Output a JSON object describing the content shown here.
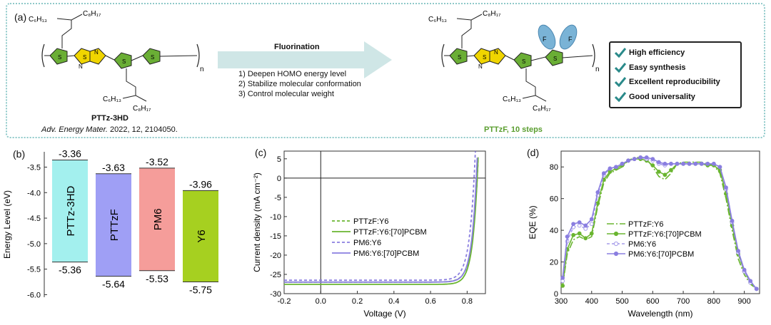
{
  "panel_a": {
    "label": "(a)",
    "left_polymer": {
      "name": "PTTz-3HD",
      "ref_journal": "Adv. Energy Mater.",
      "ref_rest": " 2022, 12, 2104050.",
      "top_chain": [
        "C₆H₁₃",
        "C₈H₁₇"
      ],
      "bottom_chain": [
        "C₆H₁₃",
        "C₈H₁₇"
      ],
      "atoms": [
        "S",
        "S",
        "N",
        "N",
        "S",
        "S",
        "n"
      ]
    },
    "arrow": {
      "title": "Fluorination",
      "steps": [
        "1) Deepen HOMO energy level",
        "2) Stabilize molecular conformation",
        "3) Control molecular weight"
      ]
    },
    "right_polymer": {
      "name": "PTTzF, 10 steps",
      "atoms": [
        "S",
        "S",
        "N",
        "N",
        "S",
        "S",
        "F",
        "F",
        "n"
      ],
      "top_chain": [
        "C₆H₁₃",
        "C₈H₁₇"
      ],
      "bottom_chain": [
        "C₆H₁₃",
        "C₈H₁₇"
      ]
    },
    "properties": [
      "High efficiency",
      "Easy synthesis",
      "Excellent reproducibility",
      "Good universality"
    ],
    "colors": {
      "thiophene": "#5a9e2f",
      "tz": "#e0c000",
      "fluoro": "#7ab3d6",
      "name_green": "#5a9e2f"
    }
  },
  "panel_b": {
    "label": "(b)",
    "ylabel": "Energy Level (eV)",
    "yticks": [
      "-3.5",
      "-4.0",
      "-4.5",
      "-5.0",
      "-5.5",
      "-6.0"
    ],
    "ytick_values": [
      -3.5,
      -4.0,
      -4.5,
      -5.0,
      -5.5,
      -6.0
    ],
    "ylim": [
      -6.05,
      -3.2
    ],
    "bars": [
      {
        "name": "PTTz-3HD",
        "lumo": -3.36,
        "homo": -5.36,
        "lumo_label": "-3.36",
        "homo_label": "-5.36",
        "color": "#a3f0ee"
      },
      {
        "name": "PTTzF",
        "lumo": -3.63,
        "homo": -5.64,
        "lumo_label": "-3.63",
        "homo_label": "-5.64",
        "color": "#9f9ff5"
      },
      {
        "name": "PM6",
        "lumo": -3.52,
        "homo": -5.53,
        "lumo_label": "-3.52",
        "homo_label": "-5.53",
        "color": "#f59d9a"
      },
      {
        "name": "Y6",
        "lumo": -3.96,
        "homo": -5.75,
        "lumo_label": "-3.96",
        "homo_label": "-5.75",
        "color": "#a6d020"
      }
    ]
  },
  "chart_data": [
    {
      "type": "line",
      "title": "(c)",
      "xlabel": "Voltage (V)",
      "ylabel": "Current density (mA cm⁻²)",
      "xlim": [
        -0.2,
        0.9
      ],
      "ylim": [
        -30,
        7
      ],
      "xticks": [
        "-0.2",
        "0.0",
        "0.2",
        "0.4",
        "0.6",
        "0.8"
      ],
      "xtick_values": [
        -0.2,
        0.0,
        0.2,
        0.4,
        0.6,
        0.8
      ],
      "yticks": [
        "5",
        "0",
        "-5",
        "-10",
        "-15",
        "-20",
        "-25",
        "-30"
      ],
      "ytick_values": [
        5,
        0,
        -5,
        -10,
        -15,
        -20,
        -25,
        -30
      ],
      "series": [
        {
          "name": "PTTzF:Y6",
          "color": "#6ab530",
          "dash": "4,3",
          "jsc": -27.0,
          "voc": 0.855,
          "n": 0.03
        },
        {
          "name": "PTTzF:Y6:[70]PCBM",
          "color": "#6ab530",
          "dash": "",
          "jsc": -27.6,
          "voc": 0.855,
          "n": 0.028
        },
        {
          "name": "PM6:Y6",
          "color": "#8a7ee0",
          "dash": "4,3",
          "jsc": -26.5,
          "voc": 0.838,
          "n": 0.03
        },
        {
          "name": "PM6:Y6:[70]PCBM",
          "color": "#8a7ee0",
          "dash": "",
          "jsc": -27.0,
          "voc": 0.85,
          "n": 0.028
        }
      ]
    },
    {
      "type": "line",
      "title": "(d)",
      "xlabel": "Wavelength (nm)",
      "ylabel": "EQE (%)",
      "xlim": [
        300,
        950
      ],
      "ylim": [
        0,
        90
      ],
      "xticks": [
        "300",
        "400",
        "500",
        "600",
        "700",
        "800",
        "900"
      ],
      "xtick_values": [
        300,
        400,
        500,
        600,
        700,
        800,
        900
      ],
      "yticks": [
        "0",
        "20",
        "40",
        "60",
        "80"
      ],
      "ytick_values": [
        0,
        20,
        40,
        60,
        80
      ],
      "series": [
        {
          "name": "PTTzF:Y6",
          "color": "#6ab530",
          "dash": "10,3,2,3",
          "marker": "none",
          "x": [
            305,
            320,
            340,
            360,
            380,
            400,
            420,
            440,
            460,
            480,
            500,
            520,
            540,
            560,
            580,
            600,
            620,
            640,
            660,
            680,
            700,
            720,
            740,
            760,
            780,
            800,
            820,
            840,
            860,
            880,
            900,
            920,
            940
          ],
          "y": [
            5,
            25,
            34,
            36,
            34,
            36,
            55,
            70,
            76,
            78,
            80,
            84,
            86,
            86,
            85,
            80,
            74,
            72,
            76,
            82,
            83,
            83,
            83,
            83,
            82,
            81,
            76,
            60,
            40,
            22,
            12,
            6,
            3
          ]
        },
        {
          "name": "PTTzF:Y6:[70]PCBM",
          "color": "#6ab530",
          "dash": "",
          "marker": "circle-filled",
          "x": [
            305,
            320,
            340,
            360,
            380,
            400,
            420,
            440,
            460,
            480,
            500,
            520,
            540,
            560,
            580,
            600,
            620,
            640,
            660,
            680,
            700,
            720,
            740,
            760,
            780,
            800,
            820,
            840,
            860,
            880,
            900,
            920,
            940
          ],
          "y": [
            5,
            28,
            37,
            38,
            35,
            38,
            57,
            72,
            77,
            79,
            81,
            84,
            85,
            85,
            84,
            81,
            77,
            75,
            78,
            82,
            82,
            82,
            82,
            82,
            81,
            81,
            78,
            63,
            43,
            25,
            14,
            7,
            3
          ]
        },
        {
          "name": "PM6:Y6",
          "color": "#a59bea",
          "dash": "4,3",
          "marker": "circle-open",
          "x": [
            305,
            320,
            340,
            360,
            380,
            400,
            420,
            440,
            460,
            480,
            500,
            520,
            540,
            560,
            580,
            600,
            620,
            640,
            660,
            680,
            700,
            720,
            740,
            760,
            780,
            800,
            820,
            840,
            860,
            880,
            900,
            920,
            940
          ],
          "y": [
            8,
            33,
            42,
            43,
            41,
            44,
            62,
            75,
            79,
            80,
            82,
            84,
            85,
            86,
            85,
            84,
            82,
            81,
            82,
            82,
            82,
            82,
            82,
            82,
            82,
            82,
            80,
            66,
            45,
            26,
            14,
            7,
            3
          ]
        },
        {
          "name": "PM6:Y6:[70]PCBM",
          "color": "#8a7ee0",
          "dash": "",
          "marker": "circle-filled",
          "x": [
            305,
            320,
            340,
            360,
            380,
            400,
            420,
            440,
            460,
            480,
            500,
            520,
            540,
            560,
            580,
            600,
            620,
            640,
            660,
            680,
            700,
            720,
            740,
            760,
            780,
            800,
            820,
            840,
            860,
            880,
            900,
            920,
            940
          ],
          "y": [
            10,
            36,
            44,
            45,
            43,
            47,
            64,
            76,
            79,
            80,
            82,
            84,
            85,
            86,
            86,
            85,
            83,
            82,
            82,
            82,
            82,
            82,
            82,
            82,
            82,
            82,
            80,
            67,
            46,
            27,
            15,
            8,
            3
          ]
        }
      ]
    }
  ]
}
